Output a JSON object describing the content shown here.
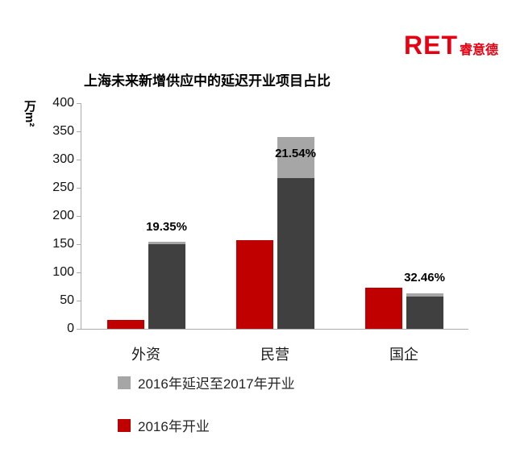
{
  "logo": {
    "ret": "RET",
    "suffix": "睿意德",
    "color": "#e60012"
  },
  "chart_data": {
    "type": "bar",
    "title": "上海未来新增供应中的延迟开业项目占比",
    "ylabel": "万m²",
    "xlabel": "",
    "ylim": [
      0,
      400
    ],
    "yticks": [
      400,
      350,
      300,
      250,
      200,
      150,
      100,
      50,
      0
    ],
    "grid": false,
    "categories": [
      "外资",
      "民营",
      "国企"
    ],
    "series": [
      {
        "name": "2016年开业",
        "color": "#c00000",
        "values": [
          16,
          157,
          73
        ]
      },
      {
        "name": "2016年延迟至2017年开业",
        "color_dark": "#404040",
        "color_light": "#a6a6a6",
        "dark_values": [
          150,
          267,
          57
        ],
        "light_values": [
          5,
          73,
          6
        ],
        "totals": [
          155,
          340,
          63
        ]
      }
    ],
    "bar_labels": [
      {
        "text": "19.35%",
        "category": "外资",
        "y": 168
      },
      {
        "text": "21.54%",
        "category": "民营",
        "y": 298
      },
      {
        "text": "32.46%",
        "category": "国企",
        "y": 78
      }
    ],
    "legend": [
      {
        "label": "2016年延迟至2017年开业",
        "color": "#a6a6a6"
      },
      {
        "label": "2016年开业",
        "color": "#c00000"
      }
    ],
    "legend_position": "bottom-left",
    "axis_color": "#ababab"
  }
}
